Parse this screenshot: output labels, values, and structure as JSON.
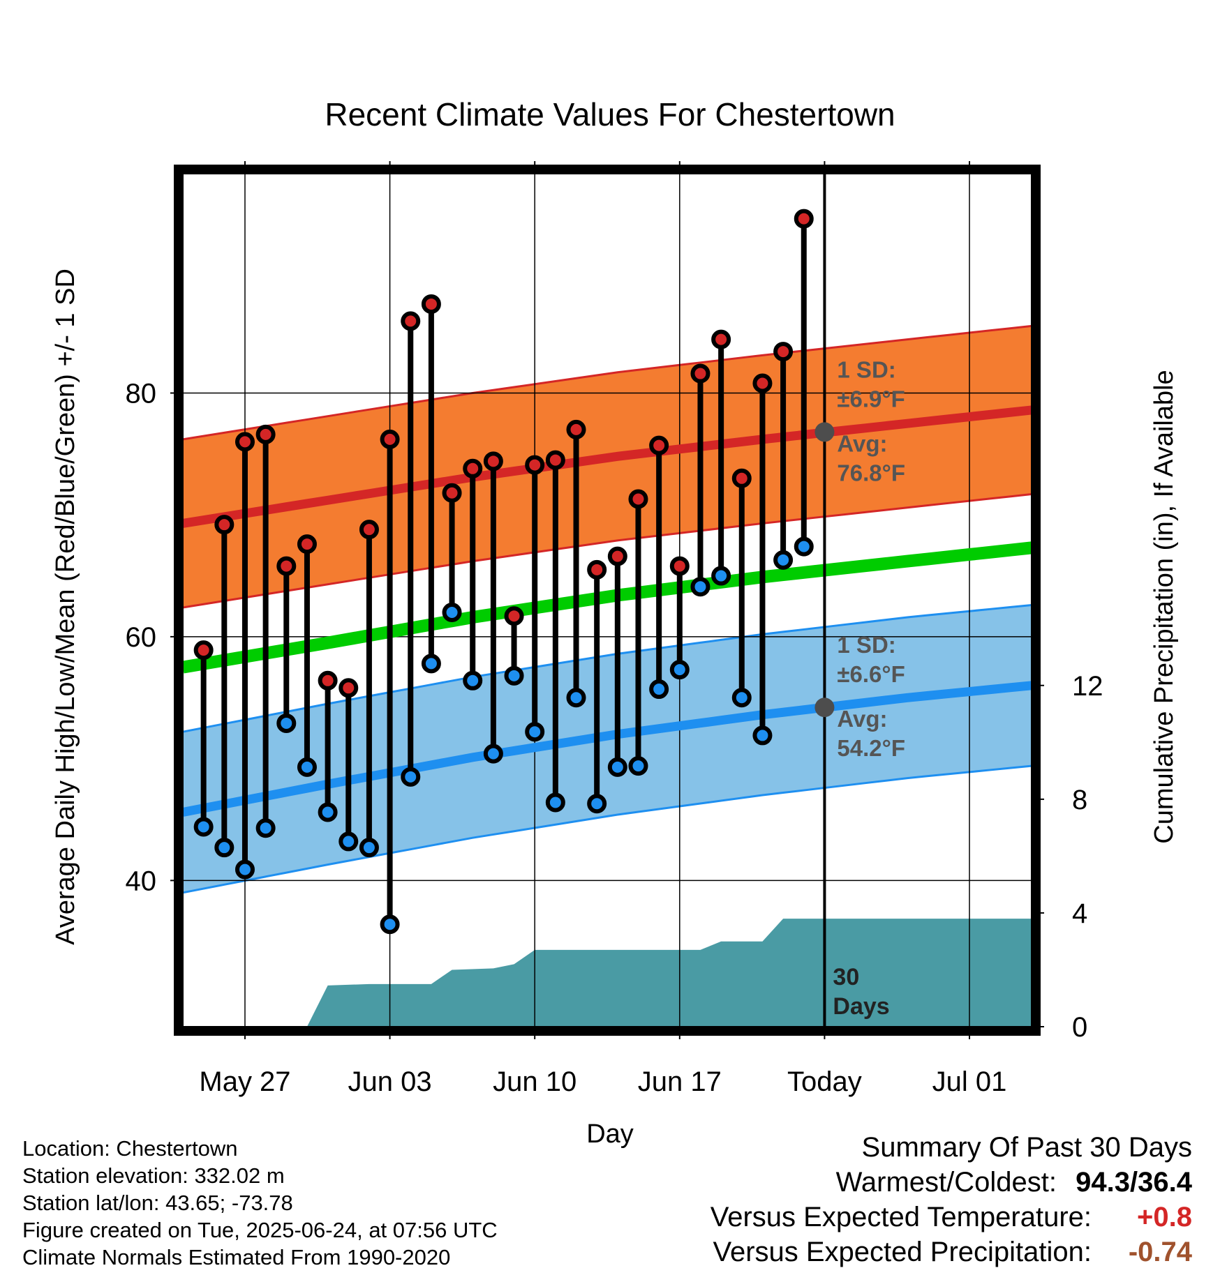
{
  "chart_data": {
    "type": "line",
    "title": "Recent Climate Values For Chestertown",
    "xlabel": "Day",
    "ylabel": "Average Daily High/Low/Mean (Red/Blue/Green) +/- 1 SD",
    "y2label": "Cumulative Precipitation (in), If Available",
    "x_range": [
      "2025-05-24",
      "2025-07-04"
    ],
    "ylim": [
      28,
      98
    ],
    "y2lim": [
      0,
      30
    ],
    "y_ticks": [
      40,
      60,
      80
    ],
    "y_minor_ticks": [
      30,
      50,
      70,
      90
    ],
    "y2_ticks": [
      0,
      4,
      8,
      12
    ],
    "x_ticks": [
      {
        "date": "2025-05-27",
        "label": "May 27"
      },
      {
        "date": "2025-06-03",
        "label": "Jun 03"
      },
      {
        "date": "2025-06-10",
        "label": "Jun 10"
      },
      {
        "date": "2025-06-17",
        "label": "Jun 17"
      },
      {
        "date": "2025-06-24",
        "label": "Today"
      },
      {
        "date": "2025-07-01",
        "label": "Jul 01"
      }
    ],
    "today": "2025-06-24",
    "grid": true,
    "observed": {
      "dates": [
        "2025-05-25",
        "2025-05-26",
        "2025-05-27",
        "2025-05-28",
        "2025-05-29",
        "2025-05-30",
        "2025-05-31",
        "2025-06-01",
        "2025-06-02",
        "2025-06-03",
        "2025-06-04",
        "2025-06-05",
        "2025-06-06",
        "2025-06-07",
        "2025-06-08",
        "2025-06-09",
        "2025-06-10",
        "2025-06-11",
        "2025-06-12",
        "2025-06-13",
        "2025-06-14",
        "2025-06-15",
        "2025-06-16",
        "2025-06-17",
        "2025-06-18",
        "2025-06-19",
        "2025-06-20",
        "2025-06-21",
        "2025-06-22",
        "2025-06-23"
      ],
      "high": [
        58.9,
        69.2,
        76.0,
        76.6,
        65.8,
        67.6,
        56.4,
        55.8,
        68.8,
        76.2,
        85.9,
        87.3,
        71.8,
        73.8,
        74.4,
        61.7,
        74.1,
        74.5,
        77.0,
        65.5,
        66.6,
        71.3,
        75.7,
        65.8,
        81.6,
        84.4,
        73.0,
        80.8,
        83.4,
        94.3
      ],
      "low": [
        44.4,
        42.7,
        40.9,
        44.3,
        52.9,
        49.3,
        45.6,
        43.2,
        42.7,
        36.4,
        48.5,
        57.8,
        62.0,
        56.4,
        50.4,
        56.8,
        52.2,
        46.4,
        55.0,
        46.3,
        49.3,
        49.4,
        55.7,
        57.3,
        64.1,
        65.0,
        55.0,
        51.9,
        66.3,
        67.4
      ]
    },
    "normals": {
      "dates": [
        "2025-05-24",
        "2025-05-31",
        "2025-06-07",
        "2025-06-14",
        "2025-06-21",
        "2025-06-28",
        "2025-07-04"
      ],
      "high_mean": [
        69.3,
        71.2,
        73.1,
        74.8,
        76.2,
        77.5,
        78.6
      ],
      "high_sd": 6.9,
      "low_mean": [
        45.6,
        47.9,
        50.1,
        52.0,
        53.6,
        55.0,
        56.0
      ],
      "low_sd": 6.6,
      "mean": [
        57.5,
        59.5,
        61.6,
        63.4,
        64.9,
        66.2,
        67.3
      ]
    },
    "precip_cumulative": {
      "dates": [
        "2025-05-30",
        "2025-05-31",
        "2025-06-02",
        "2025-06-05",
        "2025-06-06",
        "2025-06-08",
        "2025-06-09",
        "2025-06-10",
        "2025-06-18",
        "2025-06-19",
        "2025-06-21",
        "2025-06-22",
        "2025-07-04"
      ],
      "values": [
        0.0,
        1.45,
        1.5,
        1.5,
        2.0,
        2.05,
        2.2,
        2.7,
        2.7,
        3.0,
        3.0,
        3.8,
        3.8
      ]
    },
    "annotations": {
      "high": {
        "sd_label": "1 SD:",
        "sd_value": "±6.9°F",
        "avg_label": "Avg:",
        "avg_value": "76.8°F",
        "avg": 76.8
      },
      "low": {
        "sd_label": "1 SD:",
        "sd_value": "±6.6°F",
        "avg_label": "Avg:",
        "avg_value": "54.2°F",
        "avg": 54.2
      },
      "days_line1": "30",
      "days_line2": "Days"
    },
    "colors": {
      "high_band": "#f47c30",
      "high_line": "#d42626",
      "low_band": "#86c2e8",
      "low_line": "#1e8ff0",
      "mean_line": "#00cc00",
      "precip": "#4a9ba4",
      "high_point": "#d42626",
      "low_point": "#1e8ff0",
      "annotation_text": "#555555",
      "summary_temp": "#d42626",
      "summary_precip": "#a0522d"
    }
  },
  "info": {
    "location": "Location: Chestertown",
    "elevation": "Station elevation: 332.02 m",
    "latlon": "Station lat/lon: 43.65; -73.78",
    "created": "Figure created on Tue, 2025-06-24, at 07:56 UTC",
    "normals": "Climate Normals Estimated From 1990-2020"
  },
  "summary": {
    "title": "Summary Of Past 30 Days",
    "extremes_label": "Warmest/Coldest:",
    "extremes_value": "94.3/36.4",
    "temp_label": "Versus Expected Temperature:",
    "temp_value": "+0.8",
    "precip_label": "Versus Expected Precipitation:",
    "precip_value": "-0.74"
  }
}
